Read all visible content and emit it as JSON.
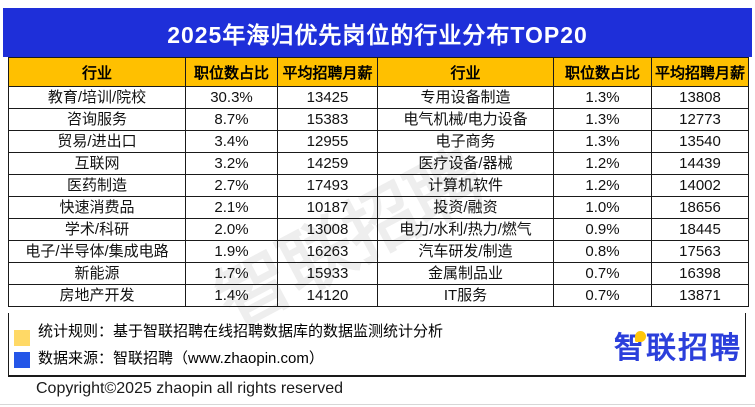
{
  "title": "2025年海归优先岗位的行业分布TOP20",
  "table": {
    "headers": [
      "行业",
      "职位数占比",
      "平均招聘月薪",
      "行业",
      "职位数占比",
      "平均招聘月薪"
    ],
    "rows": [
      [
        "教育/培训/院校",
        "30.3%",
        "13425",
        "专用设备制造",
        "1.3%",
        "13808"
      ],
      [
        "咨询服务",
        "8.7%",
        "15383",
        "电气机械/电力设备",
        "1.3%",
        "12773"
      ],
      [
        "贸易/进出口",
        "3.4%",
        "12955",
        "电子商务",
        "1.3%",
        "13540"
      ],
      [
        "互联网",
        "3.2%",
        "14259",
        "医疗设备/器械",
        "1.2%",
        "14439"
      ],
      [
        "医药制造",
        "2.7%",
        "17493",
        "计算机软件",
        "1.2%",
        "14002"
      ],
      [
        "快速消费品",
        "2.1%",
        "10187",
        "投资/融资",
        "1.0%",
        "18656"
      ],
      [
        "学术/科研",
        "2.0%",
        "13008",
        "电力/水利/热力/燃气",
        "0.9%",
        "18445"
      ],
      [
        "电子/半导体/集成电路",
        "1.9%",
        "16263",
        "汽车研发/制造",
        "0.8%",
        "17563"
      ],
      [
        "新能源",
        "1.7%",
        "15933",
        "金属制品业",
        "0.7%",
        "16398"
      ],
      [
        "房地产开发",
        "1.4%",
        "14120",
        "IT服务",
        "0.7%",
        "13871"
      ]
    ]
  },
  "watermark": "智联招聘",
  "footer": {
    "note1": "统计规则：基于智联招聘在线招聘数据库的数据监测统计分析",
    "note2": "数据来源：智联招聘（www.zhaopin.com）",
    "copyright": "Copyright©2025 zhaopin all rights reserved"
  },
  "logo": {
    "text": "智联招聘"
  },
  "colors": {
    "banner_blue": "#1E2FD9",
    "header_yellow": "#FFC000",
    "legend_yellow": "#FFD966",
    "legend_blue": "#2456E8",
    "logo_blue": "#2B3FDB",
    "logo_dot_yellow": "#FFC60A"
  }
}
